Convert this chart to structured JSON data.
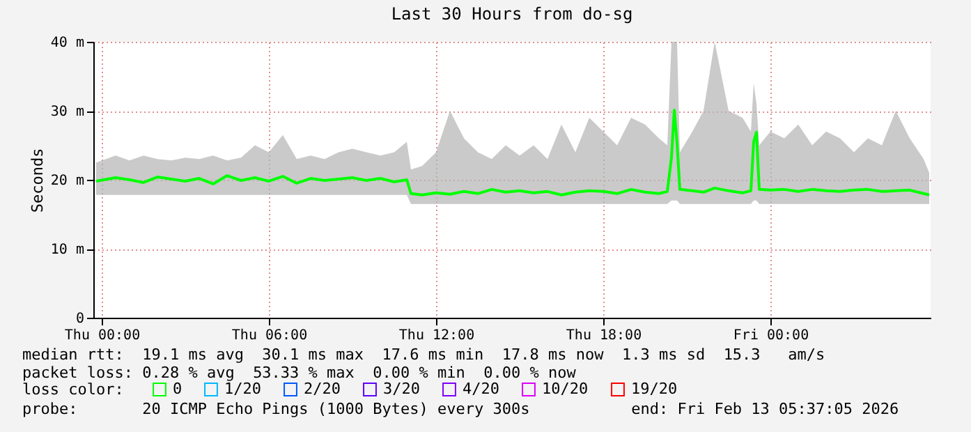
{
  "chart_data": {
    "type": "line",
    "title": "Last 30 Hours from do-sg",
    "ylabel": "Seconds",
    "x": [
      "2026-02-11T23:48",
      "2026-02-12T00:30",
      "2026-02-12T01:00",
      "2026-02-12T01:30",
      "2026-02-12T02:00",
      "2026-02-12T02:30",
      "2026-02-12T03:00",
      "2026-02-12T03:30",
      "2026-02-12T04:00",
      "2026-02-12T04:30",
      "2026-02-12T05:00",
      "2026-02-12T05:30",
      "2026-02-12T06:00",
      "2026-02-12T06:30",
      "2026-02-12T07:00",
      "2026-02-12T07:30",
      "2026-02-12T08:00",
      "2026-02-12T08:30",
      "2026-02-12T09:00",
      "2026-02-12T09:30",
      "2026-02-12T10:00",
      "2026-02-12T10:30",
      "2026-02-12T10:57",
      "2026-02-12T11:06",
      "2026-02-12T11:30",
      "2026-02-12T12:00",
      "2026-02-12T12:30",
      "2026-02-12T13:00",
      "2026-02-12T13:30",
      "2026-02-12T14:00",
      "2026-02-12T14:30",
      "2026-02-12T15:00",
      "2026-02-12T15:30",
      "2026-02-12T16:00",
      "2026-02-12T16:30",
      "2026-02-12T17:00",
      "2026-02-12T17:30",
      "2026-02-12T18:00",
      "2026-02-12T18:30",
      "2026-02-12T19:00",
      "2026-02-12T19:30",
      "2026-02-12T20:00",
      "2026-02-12T20:18",
      "2026-02-12T20:27",
      "2026-02-12T20:33",
      "2026-02-12T20:39",
      "2026-02-12T20:45",
      "2026-02-12T21:12",
      "2026-02-12T21:36",
      "2026-02-12T22:00",
      "2026-02-12T22:30",
      "2026-02-12T23:00",
      "2026-02-12T23:18",
      "2026-02-12T23:24",
      "2026-02-12T23:30",
      "2026-02-12T23:36",
      "2026-02-13T00:00",
      "2026-02-13T00:30",
      "2026-02-13T01:00",
      "2026-02-13T01:30",
      "2026-02-13T02:00",
      "2026-02-13T02:30",
      "2026-02-13T03:00",
      "2026-02-13T03:30",
      "2026-02-13T04:00",
      "2026-02-13T04:30",
      "2026-02-13T05:00",
      "2026-02-13T05:30",
      "2026-02-13T05:42"
    ],
    "series": [
      {
        "name": "0",
        "color": "#00ff00",
        "values": [
          19.8,
          20.3,
          20.0,
          19.6,
          20.4,
          20.1,
          19.8,
          20.2,
          19.4,
          20.6,
          19.9,
          20.3,
          19.8,
          20.5,
          19.5,
          20.2,
          19.9,
          20.1,
          20.3,
          19.9,
          20.2,
          19.7,
          20.0,
          18.0,
          17.8,
          18.1,
          17.9,
          18.3,
          18.0,
          18.6,
          18.2,
          18.4,
          18.1,
          18.3,
          17.8,
          18.2,
          18.4,
          18.3,
          18.0,
          18.6,
          18.2,
          18.0,
          18.3,
          23.2,
          30.1,
          25.3,
          18.6,
          18.4,
          18.2,
          18.8,
          18.4,
          18.1,
          18.4,
          25.5,
          26.9,
          18.6,
          18.5,
          18.6,
          18.3,
          18.6,
          18.4,
          18.3,
          18.5,
          18.6,
          18.3,
          18.4,
          18.5,
          18.0,
          17.8
        ],
        "lower": [
          17.8,
          17.8,
          17.8,
          17.8,
          17.8,
          17.8,
          17.8,
          17.8,
          17.8,
          17.8,
          17.8,
          17.8,
          17.8,
          17.8,
          17.8,
          17.8,
          17.8,
          17.8,
          17.8,
          17.8,
          17.8,
          17.8,
          17.8,
          16.5,
          16.5,
          16.5,
          16.5,
          16.5,
          16.5,
          16.5,
          16.5,
          16.5,
          16.5,
          16.5,
          16.5,
          16.5,
          16.5,
          16.5,
          16.5,
          16.5,
          16.5,
          16.5,
          16.5,
          17.0,
          17.0,
          17.0,
          16.5,
          16.5,
          16.5,
          16.5,
          16.5,
          16.5,
          16.5,
          17.0,
          17.0,
          16.5,
          16.5,
          16.5,
          16.5,
          16.5,
          16.5,
          16.5,
          16.5,
          16.5,
          16.5,
          16.5,
          16.5,
          16.5,
          16.5
        ],
        "upper": [
          22.5,
          23.5,
          22.8,
          23.5,
          23.0,
          22.8,
          23.2,
          23.0,
          23.5,
          22.8,
          23.2,
          25.0,
          24.0,
          26.5,
          23.0,
          23.5,
          23.0,
          24.0,
          24.5,
          24.0,
          23.5,
          24.0,
          25.5,
          21.5,
          22.0,
          24.0,
          30.0,
          26.0,
          24.0,
          23.0,
          25.0,
          23.5,
          25.0,
          23.0,
          28.0,
          24.0,
          29.0,
          27.0,
          25.0,
          29.0,
          28.0,
          26.0,
          25.0,
          40.0,
          40.0,
          40.0,
          24.0,
          27.0,
          30.0,
          40.0,
          30.0,
          29.0,
          27.0,
          34.0,
          31.0,
          25.0,
          27.0,
          26.0,
          28.0,
          25.0,
          27.0,
          26.0,
          24.0,
          26.0,
          25.0,
          30.0,
          26.0,
          23.0,
          21.0
        ]
      },
      {
        "name": "1/20",
        "color": "#00b8ff",
        "values": [
          null,
          null,
          null,
          null,
          null,
          null,
          null,
          null,
          null,
          null,
          null,
          null,
          null,
          null,
          null,
          null,
          null,
          null,
          null,
          null,
          null,
          null,
          null,
          null,
          null,
          null,
          null,
          null,
          null,
          null,
          null,
          null,
          null,
          null,
          null,
          null,
          null,
          null,
          null,
          null,
          null,
          null,
          null,
          null,
          null,
          null,
          null,
          null,
          null,
          null,
          null,
          null,
          null,
          null,
          null,
          null,
          null,
          null,
          null,
          null,
          null,
          null,
          null,
          null,
          null,
          null,
          null,
          null,
          null
        ]
      },
      {
        "name": "2/20",
        "color": "#0059ff",
        "values": [
          null,
          null,
          null,
          null,
          null,
          null,
          null,
          null,
          null,
          null,
          null,
          null,
          null,
          null,
          null,
          null,
          null,
          null,
          null,
          null,
          null,
          null,
          null,
          null,
          null,
          null,
          null,
          null,
          null,
          null,
          null,
          null,
          null,
          null,
          null,
          null,
          null,
          null,
          null,
          null,
          null,
          null,
          null,
          null,
          null,
          null,
          null,
          null,
          null,
          null,
          null,
          null,
          null,
          null,
          null,
          null,
          null,
          null,
          null,
          null,
          null,
          null,
          null,
          null,
          null,
          null,
          null,
          null,
          null
        ]
      },
      {
        "name": "3/20",
        "color": "#5e00ff",
        "values": [
          null,
          null,
          null,
          null,
          null,
          null,
          null,
          null,
          null,
          null,
          null,
          null,
          null,
          null,
          null,
          null,
          null,
          null,
          null,
          null,
          null,
          null,
          null,
          null,
          null,
          null,
          null,
          null,
          null,
          null,
          null,
          null,
          null,
          null,
          null,
          null,
          null,
          null,
          null,
          null,
          null,
          null,
          null,
          null,
          null,
          null,
          null,
          null,
          null,
          null,
          null,
          null,
          null,
          null,
          null,
          null,
          null,
          null,
          null,
          null,
          null,
          null,
          null,
          null,
          null,
          null,
          null,
          null,
          null
        ]
      },
      {
        "name": "4/20",
        "color": "#7e00ff",
        "values": [
          null,
          null,
          null,
          null,
          null,
          null,
          null,
          null,
          null,
          null,
          null,
          null,
          null,
          null,
          null,
          null,
          null,
          null,
          null,
          null,
          null,
          null,
          null,
          null,
          null,
          null,
          null,
          null,
          null,
          null,
          null,
          null,
          null,
          null,
          null,
          null,
          null,
          null,
          null,
          null,
          null,
          null,
          null,
          null,
          null,
          null,
          null,
          null,
          null,
          null,
          null,
          null,
          null,
          null,
          null,
          null,
          null,
          null,
          null,
          null,
          null,
          null,
          null,
          null,
          null,
          null,
          null,
          null,
          null
        ]
      },
      {
        "name": "10/20",
        "color": "#dd00ff",
        "values": [
          null,
          null,
          null,
          null,
          null,
          null,
          null,
          null,
          null,
          null,
          null,
          null,
          null,
          null,
          null,
          null,
          null,
          null,
          null,
          null,
          null,
          null,
          null,
          null,
          null,
          null,
          null,
          null,
          null,
          null,
          null,
          null,
          null,
          null,
          null,
          null,
          null,
          null,
          null,
          null,
          null,
          null,
          null,
          null,
          null,
          null,
          null,
          null,
          null,
          null,
          null,
          null,
          null,
          null,
          null,
          null,
          null,
          null,
          null,
          null,
          null,
          null,
          null,
          null,
          null,
          null,
          null,
          null,
          null
        ]
      },
      {
        "name": "19/20",
        "color": "#ff0000",
        "values": [
          null,
          null,
          null,
          null,
          null,
          null,
          null,
          null,
          null,
          null,
          null,
          null,
          null,
          null,
          null,
          null,
          null,
          null,
          null,
          null,
          null,
          null,
          null,
          null,
          null,
          null,
          null,
          null,
          null,
          null,
          null,
          null,
          null,
          null,
          null,
          null,
          null,
          null,
          null,
          null,
          null,
          null,
          null,
          null,
          null,
          null,
          null,
          null,
          null,
          null,
          null,
          null,
          null,
          null,
          null,
          null,
          null,
          null,
          null,
          null,
          null,
          null,
          null,
          null,
          null,
          null,
          null,
          null,
          null
        ]
      }
    ],
    "legend_title": "loss color:",
    "legend": "bottom",
    "xlim": [
      "2026-02-11T23:42",
      "2026-02-13T05:45"
    ],
    "xticks": [
      {
        "value": "2026-02-12T00:00",
        "label": "Thu 00:00"
      },
      {
        "value": "2026-02-12T06:00",
        "label": "Thu 06:00"
      },
      {
        "value": "2026-02-12T12:00",
        "label": "Thu 12:00"
      },
      {
        "value": "2026-02-12T18:00",
        "label": "Thu 18:00"
      },
      {
        "value": "2026-02-13T00:00",
        "label": "Fri 00:00"
      }
    ],
    "ylim": [
      0,
      40
    ],
    "yticks": [
      0,
      {
        "value": 10,
        "label": "10 m"
      },
      {
        "value": 20,
        "label": "20 m"
      },
      {
        "value": 30,
        "label": "30 m"
      },
      {
        "value": 40,
        "label": "40 m"
      }
    ],
    "grid": true,
    "line_style": "solid",
    "annotations": [
      "median rtt:  19.1 ms avg  30.1 ms max  17.6 ms min  17.8 ms now  1.3 ms sd  15.3   am/s",
      "packet loss: 0.28 % avg  53.33 % max  0.00 % min  0.00 % now",
      "probe:       20 ICMP Echo Pings (1000 Bytes) every 300s           end: Fri Feb 13 05:37:05 2026"
    ]
  }
}
